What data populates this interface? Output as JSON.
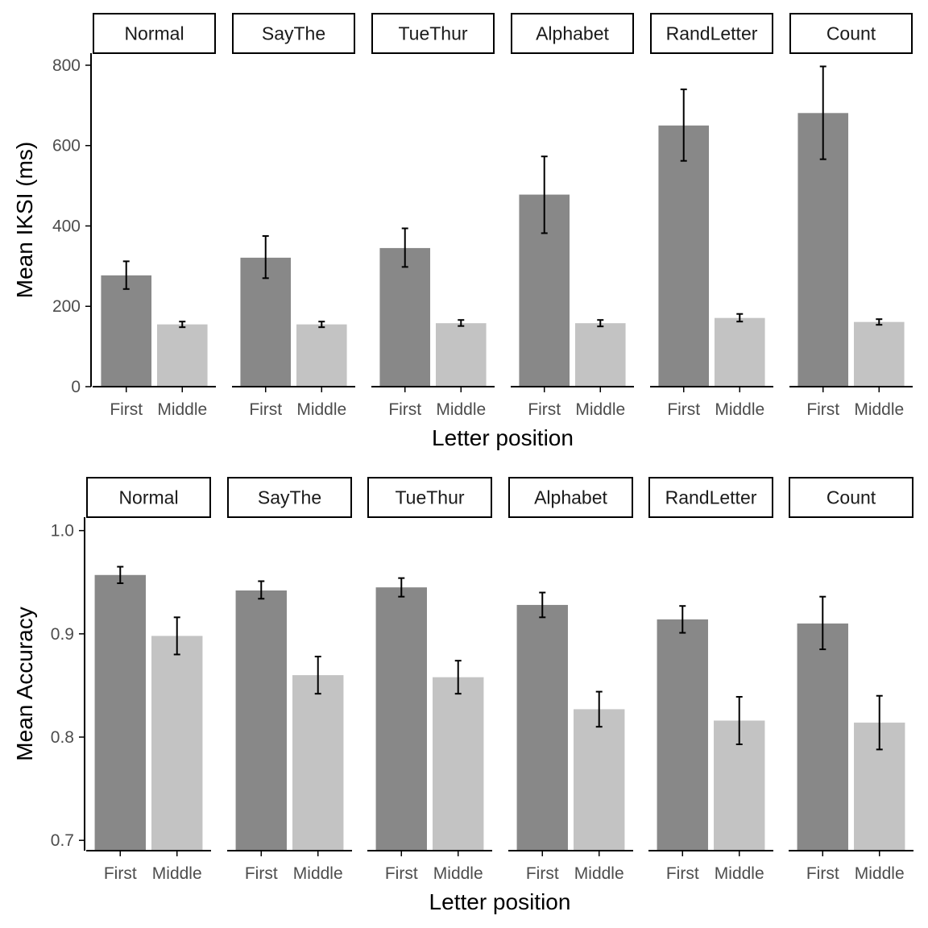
{
  "figure": {
    "layout": "two-panel faceted bar chart with error bars",
    "colors": {
      "First": "#888888",
      "Middle": "#c3c3c3",
      "axis": "#000000",
      "error_bar": "#000000"
    }
  },
  "chart_data": [
    {
      "type": "bar",
      "facets": [
        "Normal",
        "SayThe",
        "TueThur",
        "Alphabet",
        "RandLetter",
        "Count"
      ],
      "categories": [
        "First",
        "Middle"
      ],
      "xlabel": "Letter position",
      "ylabel": "Mean IKSI (ms)",
      "ylim": [
        0,
        830
      ],
      "yticks": [
        0,
        200,
        400,
        600,
        800
      ],
      "ytick_labels": [
        "0",
        "200",
        "400",
        "600",
        "800"
      ],
      "grid": false,
      "facet_values": [
        {
          "facet": "Normal",
          "values": [
            277,
            155
          ],
          "error_low": [
            243,
            148
          ],
          "error_high": [
            312,
            162
          ]
        },
        {
          "facet": "SayThe",
          "values": [
            321,
            155
          ],
          "error_low": [
            270,
            148
          ],
          "error_high": [
            375,
            162
          ]
        },
        {
          "facet": "TueThur",
          "values": [
            345,
            158
          ],
          "error_low": [
            298,
            151
          ],
          "error_high": [
            394,
            166
          ]
        },
        {
          "facet": "Alphabet",
          "values": [
            478,
            158
          ],
          "error_low": [
            382,
            150
          ],
          "error_high": [
            573,
            166
          ]
        },
        {
          "facet": "RandLetter",
          "values": [
            650,
            171
          ],
          "error_low": [
            562,
            162
          ],
          "error_high": [
            740,
            181
          ]
        },
        {
          "facet": "Count",
          "values": [
            681,
            161
          ],
          "error_low": [
            566,
            154
          ],
          "error_high": [
            797,
            168
          ]
        }
      ]
    },
    {
      "type": "bar",
      "facets": [
        "Normal",
        "SayThe",
        "TueThur",
        "Alphabet",
        "RandLetter",
        "Count"
      ],
      "categories": [
        "First",
        "Middle"
      ],
      "xlabel": "Letter position",
      "ylabel": "Mean Accuracy",
      "ylim": [
        0.69,
        1.013
      ],
      "yticks": [
        0.7,
        0.8,
        0.9,
        1.0
      ],
      "ytick_labels": [
        "0.7",
        "0.8",
        "0.9",
        "1.0"
      ],
      "grid": false,
      "facet_values": [
        {
          "facet": "Normal",
          "values": [
            0.957,
            0.898
          ],
          "error_low": [
            0.949,
            0.88
          ],
          "error_high": [
            0.965,
            0.916
          ]
        },
        {
          "facet": "SayThe",
          "values": [
            0.942,
            0.86
          ],
          "error_low": [
            0.934,
            0.842
          ],
          "error_high": [
            0.951,
            0.878
          ]
        },
        {
          "facet": "TueThur",
          "values": [
            0.945,
            0.858
          ],
          "error_low": [
            0.936,
            0.842
          ],
          "error_high": [
            0.954,
            0.874
          ]
        },
        {
          "facet": "Alphabet",
          "values": [
            0.928,
            0.827
          ],
          "error_low": [
            0.916,
            0.81
          ],
          "error_high": [
            0.94,
            0.844
          ]
        },
        {
          "facet": "RandLetter",
          "values": [
            0.914,
            0.816
          ],
          "error_low": [
            0.901,
            0.793
          ],
          "error_high": [
            0.927,
            0.839
          ]
        },
        {
          "facet": "Count",
          "values": [
            0.91,
            0.814
          ],
          "error_low": [
            0.885,
            0.788
          ],
          "error_high": [
            0.936,
            0.84
          ]
        }
      ]
    }
  ]
}
